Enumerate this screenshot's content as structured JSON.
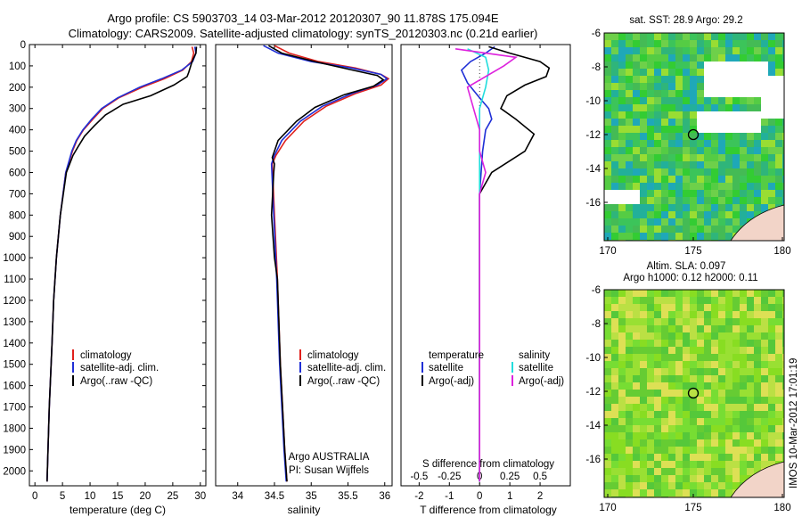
{
  "header": {
    "line1": "Argo profile: CS 5903703_14 03-Mar-2012 20120307_90 11.878S 175.094E",
    "line2": "Climatology: CARS2009. Satellite-adjusted climatology: synTS_20120303.nc (0.21d earlier)"
  },
  "colors": {
    "climatology": "#e0201c",
    "satellite": "#1f2fd6",
    "argo": "#000000",
    "salinity_sat": "#22dddd",
    "salinity_argo": "#dd22dd"
  },
  "chart_data": [
    {
      "type": "line",
      "id": "temperature",
      "xlabel": "temperature (deg C)",
      "ylabel": "",
      "xlim": [
        -1,
        31
      ],
      "ylim": [
        0,
        2070
      ],
      "y_inverted": true,
      "xticks": [
        0,
        5,
        10,
        15,
        20,
        25,
        30
      ],
      "yticks": [
        0,
        100,
        200,
        300,
        400,
        500,
        600,
        700,
        800,
        900,
        1000,
        1100,
        1200,
        1300,
        1400,
        1500,
        1600,
        1700,
        1800,
        1900,
        2000
      ],
      "legend": [
        "climatology",
        "satellite-adj. clim.",
        "Argo(..raw -QC)"
      ],
      "series": [
        {
          "name": "climatology",
          "x": [
            28.5,
            28.8,
            28.4,
            26.8,
            23.5,
            19.5,
            15.2,
            12.3,
            10.5,
            8.8,
            7.6,
            6.8,
            5.6,
            4.6,
            3.9,
            3.4,
            3.1,
            2.6,
            2.2
          ],
          "y": [
            10,
            40,
            80,
            120,
            160,
            200,
            250,
            300,
            350,
            400,
            450,
            500,
            600,
            800,
            1000,
            1200,
            1400,
            1700,
            2050
          ]
        },
        {
          "name": "satellite-adj. clim.",
          "x": [
            29.0,
            29.2,
            28.6,
            26.6,
            23.0,
            19.0,
            15.0,
            12.1,
            10.3,
            8.7,
            7.5,
            6.7,
            5.6,
            4.6,
            3.9,
            3.4,
            3.1,
            2.6,
            2.2
          ],
          "y": [
            10,
            40,
            80,
            120,
            160,
            200,
            250,
            300,
            350,
            400,
            450,
            500,
            600,
            800,
            1000,
            1200,
            1400,
            1700,
            2050
          ]
        },
        {
          "name": "Argo(..raw -QC)",
          "x": [
            29.3,
            29.2,
            28.5,
            27.9,
            27.6,
            25.2,
            21.0,
            16.0,
            12.8,
            10.8,
            9.0,
            7.8,
            6.9,
            5.7,
            4.6,
            3.9,
            3.4,
            3.1,
            2.6,
            2.2
          ],
          "y": [
            10,
            40,
            80,
            130,
            150,
            190,
            240,
            280,
            330,
            380,
            430,
            480,
            520,
            600,
            800,
            1000,
            1200,
            1400,
            1700,
            2050
          ]
        }
      ]
    },
    {
      "type": "line",
      "id": "salinity",
      "xlabel": "salinity",
      "ylabel": "",
      "xlim": [
        33.7,
        36.1
      ],
      "ylim": [
        0,
        2070
      ],
      "y_inverted": true,
      "xticks": [
        34,
        34.5,
        35,
        35.5,
        36
      ],
      "legend": [
        "climatology",
        "satellite-adj. clim.",
        "Argo(..raw -QC)"
      ],
      "series": [
        {
          "name": "climatology",
          "x": [
            34.5,
            34.7,
            35.1,
            35.6,
            35.95,
            36.05,
            35.95,
            35.6,
            35.2,
            34.9,
            34.65,
            34.52,
            34.47,
            34.5,
            34.54,
            34.58,
            34.64,
            34.67
          ],
          "y": [
            5,
            40,
            80,
            110,
            140,
            160,
            190,
            230,
            290,
            360,
            450,
            520,
            560,
            800,
            1100,
            1500,
            1900,
            2050
          ]
        },
        {
          "name": "satellite-adj. clim.",
          "x": [
            34.35,
            34.55,
            35.0,
            35.55,
            35.95,
            36.03,
            35.9,
            35.55,
            35.15,
            34.85,
            34.6,
            34.5,
            34.46,
            34.49,
            34.53,
            34.57,
            34.63,
            34.66
          ],
          "y": [
            5,
            40,
            80,
            110,
            140,
            160,
            190,
            230,
            290,
            360,
            450,
            520,
            560,
            800,
            1100,
            1500,
            1900,
            2050
          ]
        },
        {
          "name": "Argo(..raw -QC)",
          "x": [
            34.42,
            34.6,
            35.05,
            35.5,
            35.9,
            35.98,
            35.85,
            35.45,
            35.05,
            34.8,
            34.55,
            34.47,
            34.5,
            34.49,
            34.46,
            34.5,
            34.54,
            34.58,
            34.64,
            34.67
          ],
          "y": [
            5,
            40,
            80,
            115,
            145,
            165,
            195,
            235,
            295,
            360,
            450,
            530,
            560,
            600,
            800,
            1000,
            1100,
            1500,
            1900,
            2050
          ]
        }
      ],
      "annotation": [
        "Argo AUSTRALIA",
        "PI: Susan Wijffels"
      ]
    },
    {
      "type": "line",
      "id": "difference",
      "xlabel": "T difference from climatology",
      "xlabel_top": "S difference from climatology",
      "xlim": [
        -2.6,
        3.0
      ],
      "ylim": [
        0,
        2070
      ],
      "y_inverted": true,
      "xticks": [
        -2,
        -1,
        0,
        1,
        2
      ],
      "xticks_top": [
        "-0.5",
        "-0.25",
        "0",
        "0.25",
        "0.5"
      ],
      "legend_t": [
        "temperature",
        "satellite",
        "Argo(-adj)"
      ],
      "legend_s": [
        "salinity",
        "satellite",
        "Argo(-adj)"
      ],
      "series": [
        {
          "name": "temperature satellite",
          "x": [
            0.5,
            0.2,
            -0.3,
            -0.6,
            -0.4,
            0.0,
            0.3,
            0.4,
            0.2,
            0.1,
            0.0,
            0.0,
            0.0,
            0.0
          ],
          "y": [
            10,
            40,
            80,
            120,
            180,
            250,
            300,
            350,
            400,
            500,
            700,
            1000,
            1500,
            2050
          ]
        },
        {
          "name": "temperature Argo(-adj)",
          "x": [
            0.3,
            1.0,
            2.0,
            2.3,
            2.2,
            1.5,
            0.9,
            0.7,
            1.2,
            1.8,
            1.5,
            0.4,
            0.0,
            0.0,
            0.0,
            0.0
          ],
          "y": [
            10,
            40,
            80,
            110,
            150,
            190,
            240,
            300,
            350,
            420,
            500,
            600,
            700,
            1000,
            1500,
            2050
          ]
        },
        {
          "name": "salinity satellite",
          "x": [
            -0.4,
            0.2,
            0.3,
            0.2,
            0.0,
            0.0,
            0.0
          ],
          "y": [
            20,
            60,
            120,
            200,
            300,
            700,
            2050
          ]
        },
        {
          "name": "salinity Argo(-adj)",
          "x": [
            -0.8,
            0.2,
            1.2,
            0.8,
            -0.4,
            0.0,
            0.0,
            0.2,
            0.0,
            0.0,
            0.0
          ],
          "y": [
            20,
            40,
            60,
            100,
            200,
            400,
            500,
            600,
            700,
            1000,
            2050
          ]
        }
      ]
    }
  ],
  "maps": [
    {
      "id": "sst",
      "title": "sat. SST: 28.9 Argo: 29.2",
      "xticks": [
        "170",
        "175",
        "180"
      ],
      "yticks": [
        "-6",
        "-8",
        "-10",
        "-12",
        "-14",
        "-16"
      ],
      "marker": {
        "lon": 175.094,
        "lat": -11.878
      }
    },
    {
      "id": "sla",
      "title1": "Altim. SLA: 0.097",
      "title2": "Argo h1000: 0.12 h2000: 0.11",
      "xticks": [
        "170",
        "175",
        "180"
      ],
      "yticks": [
        "-6",
        "-8",
        "-10",
        "-12",
        "-14",
        "-16"
      ],
      "marker": {
        "lon": 175.094,
        "lat": -11.878
      }
    }
  ],
  "footer": {
    "stamp": "IMOS 10-Mar-2012 17:01:19"
  }
}
